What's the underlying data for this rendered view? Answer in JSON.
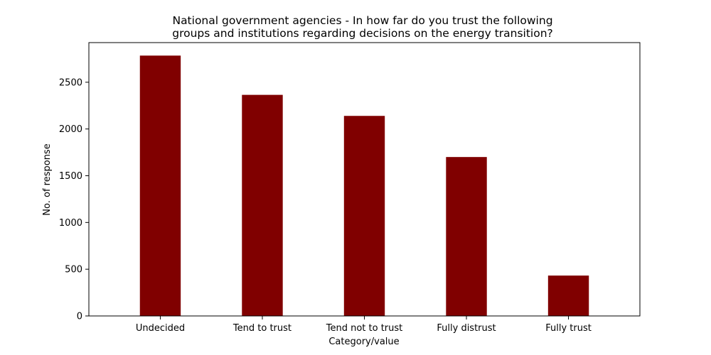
{
  "chart_data": {
    "type": "bar",
    "title_lines": [
      "National government agencies - In how far do you trust the following",
      "groups and institutions regarding decisions on the energy transition?"
    ],
    "xlabel": "Category/value",
    "ylabel": "No. of response",
    "categories": [
      "Undecided",
      "Tend to trust",
      "Tend not to trust",
      "Fully distrust",
      "Fully trust"
    ],
    "values": [
      2785,
      2365,
      2140,
      1700,
      432
    ],
    "ylim": [
      0,
      2924
    ],
    "yticks": [
      0,
      500,
      1000,
      1500,
      2000,
      2500
    ],
    "bar_color": "#800000",
    "grid": false
  }
}
